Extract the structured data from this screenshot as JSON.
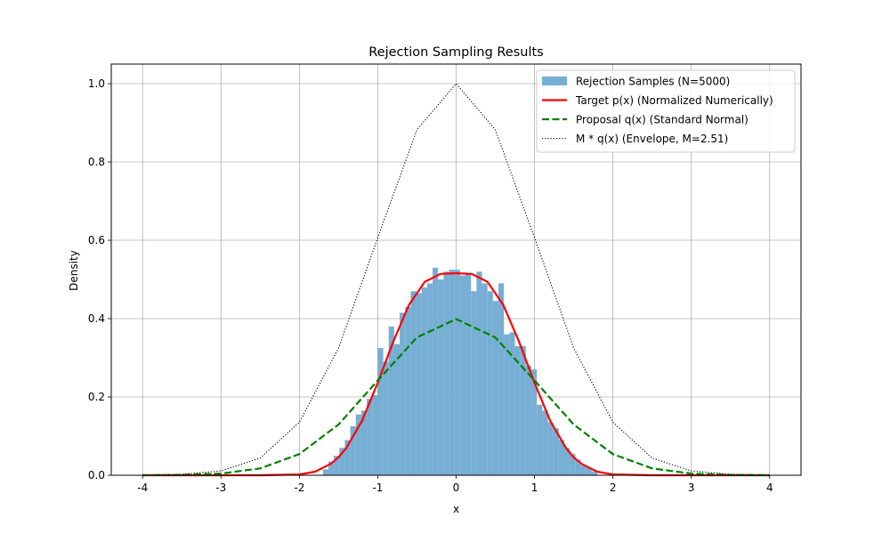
{
  "chart_data": {
    "type": "histogram+line",
    "title": "Rejection Sampling Results",
    "xlabel": "x",
    "ylabel": "Density",
    "xlim": [
      -4.4,
      4.4
    ],
    "ylim": [
      0,
      1.05
    ],
    "x_ticks": [
      -4,
      -3,
      -2,
      -1,
      0,
      1,
      2,
      3,
      4
    ],
    "x_tick_labels": [
      "-4",
      "-3",
      "-2",
      "-1",
      "0",
      "1",
      "2",
      "3",
      "4"
    ],
    "y_ticks": [
      0.0,
      0.2,
      0.4,
      0.6,
      0.8,
      1.0
    ],
    "y_tick_labels": [
      "0.0",
      "0.2",
      "0.4",
      "0.6",
      "0.8",
      "1.0"
    ],
    "grid": true,
    "legend_position": "top-right",
    "histogram": {
      "name": "Rejection Samples (N=5000)",
      "color": "#77aed3",
      "bins": [
        {
          "x0": -1.7,
          "x1": -1.63,
          "y": 0.015
        },
        {
          "x0": -1.63,
          "x1": -1.56,
          "y": 0.035
        },
        {
          "x0": -1.56,
          "x1": -1.49,
          "y": 0.05
        },
        {
          "x0": -1.49,
          "x1": -1.42,
          "y": 0.07
        },
        {
          "x0": -1.42,
          "x1": -1.35,
          "y": 0.09
        },
        {
          "x0": -1.35,
          "x1": -1.28,
          "y": 0.125
        },
        {
          "x0": -1.28,
          "x1": -1.21,
          "y": 0.155
        },
        {
          "x0": -1.21,
          "x1": -1.14,
          "y": 0.165
        },
        {
          "x0": -1.14,
          "x1": -1.07,
          "y": 0.195
        },
        {
          "x0": -1.07,
          "x1": -1.0,
          "y": 0.205
        },
        {
          "x0": -1.0,
          "x1": -0.93,
          "y": 0.325
        },
        {
          "x0": -0.93,
          "x1": -0.86,
          "y": 0.29
        },
        {
          "x0": -0.86,
          "x1": -0.79,
          "y": 0.38
        },
        {
          "x0": -0.79,
          "x1": -0.72,
          "y": 0.335
        },
        {
          "x0": -0.72,
          "x1": -0.65,
          "y": 0.415
        },
        {
          "x0": -0.65,
          "x1": -0.58,
          "y": 0.43
        },
        {
          "x0": -0.58,
          "x1": -0.51,
          "y": 0.47
        },
        {
          "x0": -0.51,
          "x1": -0.44,
          "y": 0.465
        },
        {
          "x0": -0.44,
          "x1": -0.37,
          "y": 0.48
        },
        {
          "x0": -0.37,
          "x1": -0.3,
          "y": 0.49
        },
        {
          "x0": -0.3,
          "x1": -0.23,
          "y": 0.53
        },
        {
          "x0": -0.23,
          "x1": -0.16,
          "y": 0.5
        },
        {
          "x0": -0.16,
          "x1": -0.09,
          "y": 0.52
        },
        {
          "x0": -0.09,
          "x1": -0.02,
          "y": 0.525
        },
        {
          "x0": -0.02,
          "x1": 0.05,
          "y": 0.525
        },
        {
          "x0": 0.05,
          "x1": 0.12,
          "y": 0.51
        },
        {
          "x0": 0.12,
          "x1": 0.19,
          "y": 0.515
        },
        {
          "x0": 0.19,
          "x1": 0.26,
          "y": 0.47
        },
        {
          "x0": 0.26,
          "x1": 0.33,
          "y": 0.52
        },
        {
          "x0": 0.33,
          "x1": 0.4,
          "y": 0.49
        },
        {
          "x0": 0.4,
          "x1": 0.47,
          "y": 0.47
        },
        {
          "x0": 0.47,
          "x1": 0.54,
          "y": 0.445
        },
        {
          "x0": 0.54,
          "x1": 0.61,
          "y": 0.49
        },
        {
          "x0": 0.61,
          "x1": 0.68,
          "y": 0.36
        },
        {
          "x0": 0.68,
          "x1": 0.75,
          "y": 0.365
        },
        {
          "x0": 0.75,
          "x1": 0.82,
          "y": 0.33
        },
        {
          "x0": 0.82,
          "x1": 0.89,
          "y": 0.33
        },
        {
          "x0": 0.89,
          "x1": 0.96,
          "y": 0.28
        },
        {
          "x0": 0.96,
          "x1": 1.03,
          "y": 0.27
        },
        {
          "x0": 1.03,
          "x1": 1.1,
          "y": 0.18
        },
        {
          "x0": 1.1,
          "x1": 1.17,
          "y": 0.165
        },
        {
          "x0": 1.17,
          "x1": 1.24,
          "y": 0.135
        },
        {
          "x0": 1.24,
          "x1": 1.31,
          "y": 0.12
        },
        {
          "x0": 1.31,
          "x1": 1.38,
          "y": 0.09
        },
        {
          "x0": 1.38,
          "x1": 1.45,
          "y": 0.07
        },
        {
          "x0": 1.45,
          "x1": 1.52,
          "y": 0.055
        },
        {
          "x0": 1.52,
          "x1": 1.59,
          "y": 0.04
        },
        {
          "x0": 1.59,
          "x1": 1.66,
          "y": 0.025
        },
        {
          "x0": 1.66,
          "x1": 1.73,
          "y": 0.02
        },
        {
          "x0": 1.73,
          "x1": 1.8,
          "y": 0.01
        }
      ]
    },
    "series": [
      {
        "name": "Target p(x) (Normalized Numerically)",
        "color": "#ff0000",
        "style": "solid",
        "x": [
          -4.0,
          -3.0,
          -2.5,
          -2.0,
          -1.8,
          -1.6,
          -1.5,
          -1.4,
          -1.2,
          -1.0,
          -0.8,
          -0.6,
          -0.4,
          -0.2,
          0.0,
          0.2,
          0.4,
          0.6,
          0.8,
          1.0,
          1.2,
          1.4,
          1.5,
          1.6,
          1.8,
          2.0,
          2.5,
          3.0,
          4.0
        ],
        "y": [
          0.0,
          0.0,
          0.0,
          0.002,
          0.009,
          0.029,
          0.046,
          0.07,
          0.139,
          0.236,
          0.342,
          0.436,
          0.494,
          0.514,
          0.516,
          0.514,
          0.494,
          0.436,
          0.342,
          0.236,
          0.139,
          0.07,
          0.046,
          0.029,
          0.009,
          0.002,
          0.0,
          0.0,
          0.0
        ]
      },
      {
        "name": "Proposal q(x) (Standard Normal)",
        "color": "#008000",
        "style": "dashed",
        "x": [
          -4.0,
          -3.5,
          -3.0,
          -2.5,
          -2.0,
          -1.5,
          -1.0,
          -0.5,
          0.0,
          0.5,
          1.0,
          1.5,
          2.0,
          2.5,
          3.0,
          3.5,
          4.0
        ],
        "y": [
          0.0001,
          0.0009,
          0.0044,
          0.0175,
          0.054,
          0.1295,
          0.242,
          0.352,
          0.3989,
          0.352,
          0.242,
          0.1295,
          0.054,
          0.0175,
          0.0044,
          0.0009,
          0.0001
        ]
      },
      {
        "name": "M * q(x) (Envelope, M=2.51)",
        "color": "#000000",
        "style": "dotted",
        "x": [
          -4.0,
          -3.5,
          -3.0,
          -2.5,
          -2.0,
          -1.5,
          -1.0,
          -0.5,
          0.0,
          0.5,
          1.0,
          1.5,
          2.0,
          2.5,
          3.0,
          3.5,
          4.0
        ],
        "y": [
          0.0003,
          0.0022,
          0.0111,
          0.0439,
          0.1354,
          0.3247,
          0.6065,
          0.8825,
          1.0,
          0.8825,
          0.6065,
          0.3247,
          0.1354,
          0.0439,
          0.0111,
          0.0022,
          0.0003
        ]
      }
    ]
  }
}
